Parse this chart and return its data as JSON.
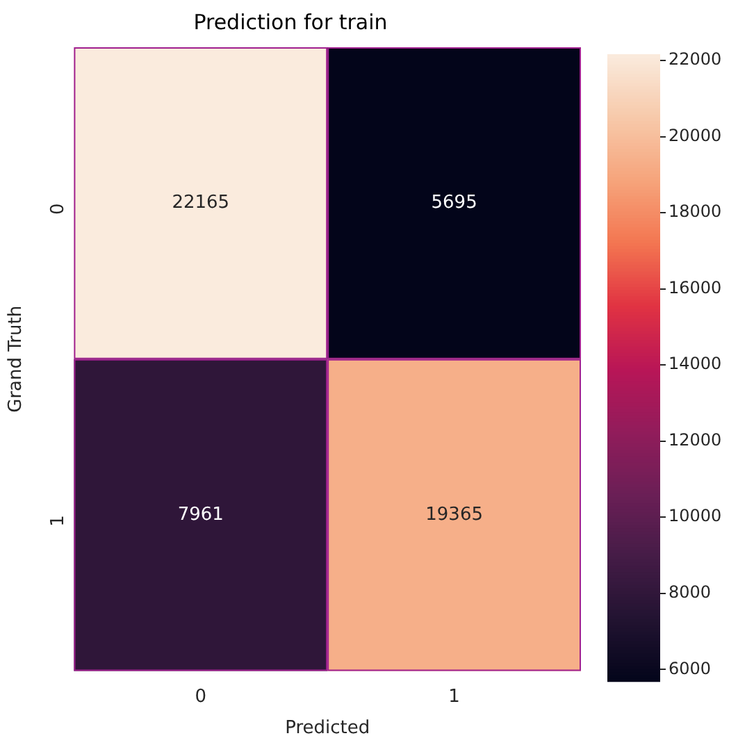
{
  "chart_data": {
    "type": "heatmap",
    "title": "Prediction for train",
    "xlabel": "Predicted",
    "ylabel": "Grand Truth",
    "categories": [
      "0",
      "1"
    ],
    "y_categories": [
      "0",
      "1"
    ],
    "cells": [
      [
        22165,
        5695
      ],
      [
        7961,
        19365
      ]
    ],
    "data_labels": true,
    "clim": [
      5695,
      22165
    ],
    "cticks": [
      6000,
      8000,
      10000,
      12000,
      14000,
      16000,
      18000,
      20000,
      22000
    ]
  }
}
